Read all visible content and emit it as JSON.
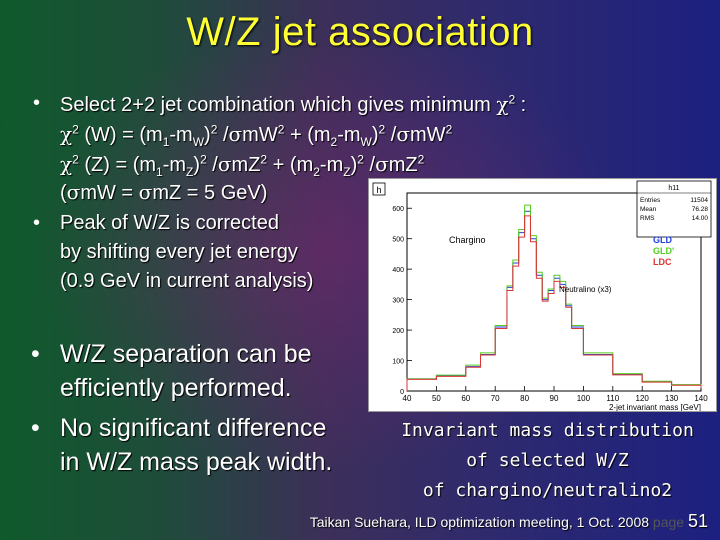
{
  "title": "W/Z jet association",
  "bullets": {
    "select_text": "Select 2+2 jet combination which gives minimum ",
    "chi": "χ",
    "two": "2",
    "colon": " :",
    "sigma": "σ",
    "w_open": " (W) = (m",
    "z_open": " (Z) = (m",
    "one": "1",
    "mw_pre": "-m",
    "W": "W",
    "Z": "Z",
    "close_sq": ")",
    "slash": " /",
    "mW": "mW",
    "mZ": "mZ",
    "plus_m": " + (m",
    "paren_open": "(",
    "equals": " = ",
    "equal_val": " = 5 GeV)",
    "peak1": "Peak of W/Z is corrected",
    "peak2": "by shifting every jet energy",
    "peak3": "(0.9 GeV in current analysis)",
    "sep1": "W/Z separation can be",
    "sep2": "efficiently performed.",
    "diff1": "No significant difference",
    "diff2": "in W/Z mass peak width.",
    "bullet_char": "•"
  },
  "chart_data": {
    "type": "line",
    "title": "h",
    "histogram_name": "h11",
    "stats": [
      {
        "label": "Entries",
        "value": "11504"
      },
      {
        "label": "Mean",
        "value": "76.28"
      },
      {
        "label": "RMS",
        "value": "14.00"
      }
    ],
    "xlabel": "2-jet invariant mass [GeV]",
    "xlim": [
      40,
      140
    ],
    "ylim": [
      0,
      650
    ],
    "x_ticks": [
      40,
      50,
      60,
      70,
      80,
      90,
      100,
      110,
      120,
      130,
      140
    ],
    "y_ticks": [
      0,
      100,
      200,
      300,
      400,
      500,
      600
    ],
    "annotations": [
      "Chargino",
      "Neutralino (x3)"
    ],
    "legend": [
      "GLD",
      "GLD'",
      "LDC"
    ],
    "legend_colors": [
      "#2244dd",
      "#55cc22",
      "#dd3333"
    ],
    "x": [
      40,
      50,
      60,
      65,
      70,
      74,
      76,
      78,
      80,
      82,
      84,
      86,
      88,
      90,
      92,
      94,
      96,
      100,
      110,
      120,
      130,
      140
    ],
    "series": [
      {
        "name": "GLD",
        "color": "#2244dd",
        "values": [
          40,
          50,
          80,
          120,
          210,
          340,
          420,
          520,
          590,
          500,
          380,
          300,
          330,
          370,
          350,
          280,
          210,
          120,
          55,
          30,
          20,
          10
        ]
      },
      {
        "name": "GLD'",
        "color": "#55cc22",
        "values": [
          40,
          52,
          85,
          125,
          215,
          345,
          430,
          530,
          610,
          510,
          390,
          305,
          335,
          380,
          360,
          285,
          215,
          125,
          57,
          32,
          21,
          11
        ]
      },
      {
        "name": "LDC",
        "color": "#dd3333",
        "values": [
          38,
          48,
          78,
          118,
          205,
          330,
          410,
          505,
          575,
          490,
          370,
          295,
          320,
          360,
          340,
          275,
          205,
          118,
          53,
          29,
          19,
          9
        ]
      }
    ]
  },
  "caption": {
    "line1": "Invariant mass distribution",
    "line2": "of selected W/Z",
    "line3": "of chargino/neutralino2"
  },
  "footer": {
    "text": "Taikan Suehara, ILD optimization meeting, 1 Oct. 2008",
    "page_label": "page",
    "page_number": "51"
  }
}
